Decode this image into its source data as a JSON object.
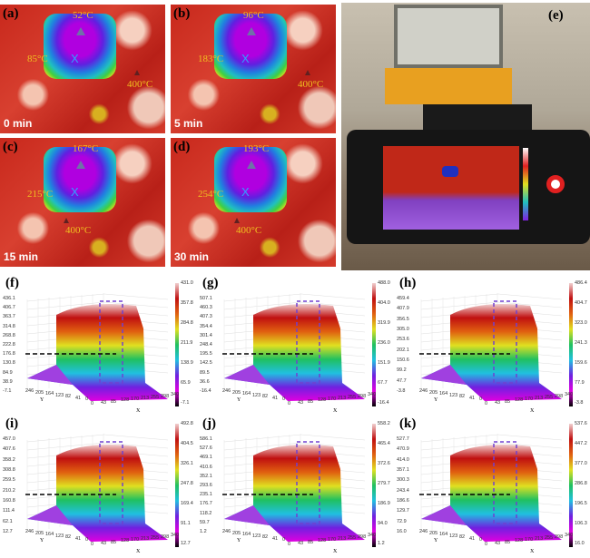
{
  "thermal": [
    {
      "label": "(a)",
      "time": "0 min",
      "top": "52°C",
      "left": "85°C",
      "bottom": "400°C"
    },
    {
      "label": "(b)",
      "time": "5 min",
      "top": "96°C",
      "left": "183°C",
      "bottom": "400°C"
    },
    {
      "label": "(c)",
      "time": "15 min",
      "top": "167°C",
      "left": "215°C",
      "bottom": "400°C"
    },
    {
      "label": "(d)",
      "time": "30 min",
      "top": "193°C",
      "left": "254°C",
      "bottom": "400°C"
    }
  ],
  "photo": {
    "label": "(e)"
  },
  "chart_data": [
    {
      "type": "surface3d",
      "label": "(f)",
      "z_ticks": [
        "436.1",
        "406.7",
        "363.7",
        "314.8",
        "268.8",
        "222.8",
        "176.8",
        "130.8",
        "84.9",
        "38.9",
        "-7.1"
      ],
      "colorbar": [
        "431.0",
        "357.8",
        "284.8",
        "211.9",
        "138.9",
        "65.9",
        "-7.1"
      ],
      "x_ticks": [
        "0",
        "43",
        "85",
        "128",
        "170",
        "213",
        "255",
        "298",
        "340"
      ],
      "y_ticks": [
        "246",
        "205",
        "164",
        "123",
        "82",
        "41",
        "0"
      ],
      "xlabel": "X",
      "ylabel": "Y"
    },
    {
      "type": "surface3d",
      "label": "(g)",
      "z_ticks": [
        "507.1",
        "460.3",
        "407.3",
        "354.4",
        "301.4",
        "248.4",
        "195.5",
        "142.5",
        "89.5",
        "36.6",
        "-16.4"
      ],
      "colorbar": [
        "488.0",
        "404.0",
        "319.9",
        "236.0",
        "151.9",
        "67.7",
        "-16.4"
      ],
      "x_ticks": [
        "0",
        "43",
        "85",
        "128",
        "170",
        "213",
        "255",
        "298",
        "340"
      ],
      "y_ticks": [
        "246",
        "205",
        "164",
        "123",
        "82",
        "41",
        "0"
      ],
      "xlabel": "X",
      "ylabel": "Y"
    },
    {
      "type": "surface3d",
      "label": "(h)",
      "z_ticks": [
        "459.4",
        "407.9",
        "356.5",
        "305.0",
        "253.6",
        "202.1",
        "150.6",
        "99.2",
        "47.7",
        "-3.8"
      ],
      "colorbar": [
        "486.4",
        "404.7",
        "323.0",
        "241.3",
        "159.6",
        "77.9",
        "-3.8"
      ],
      "x_ticks": [
        "0",
        "43",
        "85",
        "128",
        "170",
        "213",
        "255",
        "298",
        "340"
      ],
      "y_ticks": [
        "246",
        "205",
        "164",
        "123",
        "82",
        "41",
        "0"
      ],
      "xlabel": "X",
      "ylabel": "Y"
    },
    {
      "type": "surface3d",
      "label": "(i)",
      "z_ticks": [
        "457.0",
        "407.6",
        "358.2",
        "308.8",
        "259.5",
        "210.2",
        "160.8",
        "111.4",
        "62.1",
        "12.7"
      ],
      "colorbar": [
        "492.8",
        "404.5",
        "326.1",
        "247.8",
        "169.4",
        "91.1",
        "12.7"
      ],
      "x_ticks": [
        "0",
        "43",
        "85",
        "128",
        "170",
        "213",
        "255",
        "298",
        "340"
      ],
      "y_ticks": [
        "246",
        "205",
        "164",
        "123",
        "82",
        "41",
        "0"
      ],
      "xlabel": "X",
      "ylabel": "Y"
    },
    {
      "type": "surface3d",
      "label": "(j)",
      "z_ticks": [
        "586.1",
        "527.6",
        "469.1",
        "410.6",
        "352.1",
        "293.6",
        "235.1",
        "176.7",
        "118.2",
        "59.7",
        "1.2"
      ],
      "colorbar": [
        "558.2",
        "465.4",
        "372.6",
        "279.7",
        "186.9",
        "94.0",
        "1.2"
      ],
      "x_ticks": [
        "0",
        "43",
        "85",
        "128",
        "170",
        "213",
        "255",
        "298",
        "340"
      ],
      "y_ticks": [
        "246",
        "205",
        "164",
        "123",
        "82",
        "41",
        "0"
      ],
      "xlabel": "X",
      "ylabel": "Y"
    },
    {
      "type": "surface3d",
      "label": "(k)",
      "z_ticks": [
        "527.7",
        "470.9",
        "414.0",
        "357.1",
        "300.3",
        "243.4",
        "186.6",
        "129.7",
        "72.9",
        "16.0"
      ],
      "colorbar": [
        "537.6",
        "447.2",
        "377.0",
        "286.8",
        "196.5",
        "106.3",
        "16.0"
      ],
      "x_ticks": [
        "0",
        "43",
        "85",
        "128",
        "170",
        "213",
        "255",
        "298",
        "340"
      ],
      "y_ticks": [
        "246",
        "205",
        "164",
        "123",
        "82",
        "41",
        "0"
      ],
      "xlabel": "X",
      "ylabel": "Y"
    }
  ]
}
